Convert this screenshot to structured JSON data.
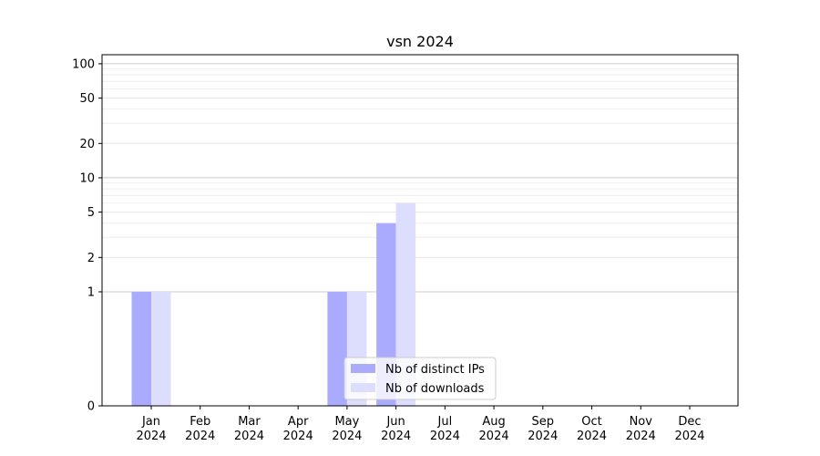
{
  "chart_data": {
    "type": "bar",
    "title": "vsn 2024",
    "xlabel": "",
    "ylabel": "",
    "y_scale": "symlog",
    "ylim": [
      0,
      120
    ],
    "y_ticks": [
      0,
      1,
      2,
      5,
      10,
      20,
      50,
      100
    ],
    "categories": [
      [
        "Jan",
        "2024"
      ],
      [
        "Feb",
        "2024"
      ],
      [
        "Mar",
        "2024"
      ],
      [
        "Apr",
        "2024"
      ],
      [
        "May",
        "2024"
      ],
      [
        "Jun",
        "2024"
      ],
      [
        "Jul",
        "2024"
      ],
      [
        "Aug",
        "2024"
      ],
      [
        "Sep",
        "2024"
      ],
      [
        "Oct",
        "2024"
      ],
      [
        "Nov",
        "2024"
      ],
      [
        "Dec",
        "2024"
      ]
    ],
    "series": [
      {
        "name": "Nb of distinct IPs",
        "color": "#aaaaff",
        "values": [
          1,
          0,
          0,
          0,
          1,
          4,
          0,
          0,
          0,
          0,
          0,
          0
        ]
      },
      {
        "name": "Nb of downloads",
        "color": "#ddddfd",
        "values": [
          1,
          0,
          0,
          0,
          1,
          6,
          0,
          0,
          0,
          0,
          0,
          0
        ]
      }
    ],
    "grid": true,
    "legend_position": "bottom-center"
  }
}
